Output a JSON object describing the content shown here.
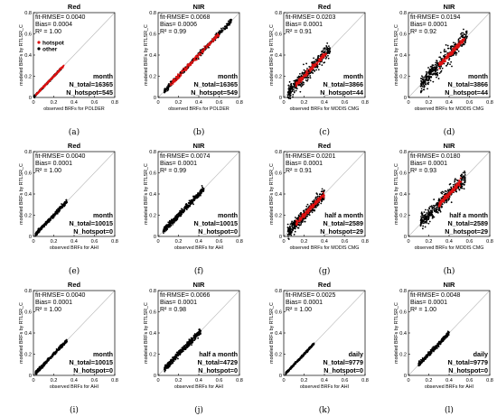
{
  "colors": {
    "hotspot": "#dd1111",
    "other": "#000000",
    "axis": "#000000",
    "diag": "#b8b8b8"
  },
  "legend": {
    "hotspot": "hotspot",
    "other": "other"
  },
  "chart_data": [
    {
      "type": "scatter",
      "caption": "(a)",
      "title": "Red",
      "stats": {
        "rmse": "fit-RMSE=  0.0040",
        "bias": "Bias=  0.0004",
        "r2": "R² =  1.00"
      },
      "period": "month",
      "n_total": "N_total=16365",
      "n_hotspot": "N_hotspot=545",
      "xlabel": "observed BRFs for POLDER",
      "ylabel": "modeled BRFs by RTLSR_C",
      "xlim": [
        0,
        0.8
      ],
      "ylim": [
        0,
        0.8
      ],
      "xticks": [
        0,
        0.2,
        0.4,
        0.6,
        0.8
      ],
      "yticks": [
        0,
        0.2,
        0.4,
        0.6,
        0.8
      ],
      "tick_labels": [
        "0",
        "0.2",
        "0.4",
        "0.6",
        "0.8"
      ],
      "legend": true,
      "other": {
        "range": [
          0.01,
          0.28
        ],
        "spread": 0.004
      },
      "hotspot": {
        "range": [
          0.02,
          0.3
        ],
        "spread": 0.005,
        "width": 0.012
      }
    },
    {
      "type": "scatter",
      "caption": "(b)",
      "title": "NIR",
      "stats": {
        "rmse": "fit-RMSE=  0.0068",
        "bias": "Bias=  0.0006",
        "r2": "R² =  0.99"
      },
      "period": "month",
      "n_total": "N_total=16365",
      "n_hotspot": "N_hotspot=549",
      "xlabel": "observed BRFs for POLDER",
      "ylabel": "modeled BRFs by RTLSR_C",
      "xlim": [
        0,
        0.8
      ],
      "ylim": [
        0,
        0.8
      ],
      "xticks": [
        0,
        0.2,
        0.4,
        0.6,
        0.8
      ],
      "yticks": [
        0,
        0.2,
        0.4,
        0.6,
        0.8
      ],
      "tick_labels": [
        "0",
        "0.2",
        "0.4",
        "0.6",
        "0.8"
      ],
      "legend": false,
      "other": {
        "range": [
          0.06,
          0.72
        ],
        "spread": 0.012
      },
      "hotspot": {
        "range": [
          0.12,
          0.6
        ],
        "spread": 0.013,
        "width": 0.03
      }
    },
    {
      "type": "scatter",
      "caption": "(c)",
      "title": "Red",
      "stats": {
        "rmse": "fit-RMSE=  0.0203",
        "bias": "Bias=  0.0001",
        "r2": "R² =  0.91"
      },
      "period": "month",
      "n_total": "N_total=3866",
      "n_hotspot": "N_hotspot=44",
      "xlabel": "observed BRFs for MODIS CMG",
      "ylabel": "modeled BRFs by RTLSR_C",
      "xlim": [
        0,
        0.8
      ],
      "ylim": [
        0,
        0.8
      ],
      "xticks": [
        0,
        0.2,
        0.4,
        0.6,
        0.8
      ],
      "yticks": [
        0,
        0.2,
        0.4,
        0.6,
        0.8
      ],
      "tick_labels": [
        "0",
        "0.2",
        "0.4",
        "0.6",
        "0.8"
      ],
      "legend": false,
      "other": {
        "range": [
          0.04,
          0.46
        ],
        "spread": 0.035
      },
      "hotspot": {
        "range": [
          0.12,
          0.42
        ],
        "spread": 0.018,
        "width": 0.02
      }
    },
    {
      "type": "scatter",
      "caption": "(d)",
      "title": "NIR",
      "stats": {
        "rmse": "fit-RMSE=  0.0194",
        "bias": "Bias=  0.0001",
        "r2": "R² =  0.92"
      },
      "period": "month",
      "n_total": "N_total=3866",
      "n_hotspot": "N_hotspot=44",
      "xlabel": "observed BRFs for MODIS CMG",
      "ylabel": "modeled BRFs by RTLSR_C",
      "xlim": [
        0,
        0.8
      ],
      "ylim": [
        0,
        0.8
      ],
      "xticks": [
        0,
        0.2,
        0.4,
        0.6,
        0.8
      ],
      "yticks": [
        0,
        0.2,
        0.4,
        0.6,
        0.8
      ],
      "tick_labels": [
        "0",
        "0.2",
        "0.4",
        "0.6",
        "0.8"
      ],
      "legend": false,
      "other": {
        "range": [
          0.12,
          0.58
        ],
        "spread": 0.04
      },
      "hotspot": {
        "range": [
          0.3,
          0.55
        ],
        "spread": 0.02,
        "width": 0.02
      }
    },
    {
      "type": "scatter",
      "caption": "(e)",
      "title": "Red",
      "stats": {
        "rmse": "fit-RMSE=  0.0040",
        "bias": "Bias=  0.0001",
        "r2": "R² =  1.00"
      },
      "period": "month",
      "n_total": "N_total=10015",
      "n_hotspot": "N_hotspot=0",
      "xlabel": "observed BRFs for AHI",
      "ylabel": "modeled BRFs by RTLSR_C",
      "xlim": [
        0,
        0.8
      ],
      "ylim": [
        0,
        0.8
      ],
      "xticks": [
        0,
        0.2,
        0.4,
        0.6,
        0.8
      ],
      "yticks": [
        0,
        0.2,
        0.4,
        0.6,
        0.8
      ],
      "tick_labels": [
        "0",
        "0.2",
        "0.4",
        "0.6",
        "0.8"
      ],
      "legend": false,
      "other": {
        "range": [
          0.02,
          0.33
        ],
        "spread": 0.008
      },
      "hotspot": null
    },
    {
      "type": "scatter",
      "caption": "(f)",
      "title": "NIR",
      "stats": {
        "rmse": "fit-RMSE=  0.0074",
        "bias": "Bias=  0.0001",
        "r2": "R² =  0.99"
      },
      "period": "month",
      "n_total": "N_total=10015",
      "n_hotspot": "N_hotspot=0",
      "xlabel": "observed BRFs for AHI",
      "ylabel": "modeled BRFs by RTLSR_C",
      "xlim": [
        0,
        0.8
      ],
      "ylim": [
        0,
        0.8
      ],
      "xticks": [
        0,
        0.2,
        0.4,
        0.6,
        0.8
      ],
      "yticks": [
        0,
        0.2,
        0.4,
        0.6,
        0.8
      ],
      "tick_labels": [
        "0",
        "0.2",
        "0.4",
        "0.6",
        "0.8"
      ],
      "legend": false,
      "other": {
        "range": [
          0.05,
          0.45
        ],
        "spread": 0.014
      },
      "hotspot": null
    },
    {
      "type": "scatter",
      "caption": "(g)",
      "title": "Red",
      "stats": {
        "rmse": "fit-RMSE=  0.0201",
        "bias": "Bias=  0.0001",
        "r2": "R² =  0.91"
      },
      "period": "half a month",
      "n_total": "N_total=2589",
      "n_hotspot": "N_hotspot=29",
      "xlabel": "observed BRFs for MODIS CMG",
      "ylabel": "modeled BRFs by RTLSR_C",
      "xlim": [
        0,
        0.8
      ],
      "ylim": [
        0,
        0.8
      ],
      "xticks": [
        0,
        0.2,
        0.4,
        0.6,
        0.8
      ],
      "yticks": [
        0,
        0.2,
        0.4,
        0.6,
        0.8
      ],
      "tick_labels": [
        "0",
        "0.2",
        "0.4",
        "0.6",
        "0.8"
      ],
      "legend": false,
      "other": {
        "range": [
          0.04,
          0.4
        ],
        "spread": 0.03
      },
      "hotspot": {
        "range": [
          0.12,
          0.4
        ],
        "spread": 0.018,
        "width": 0.02
      }
    },
    {
      "type": "scatter",
      "caption": "(h)",
      "title": "NIR",
      "stats": {
        "rmse": "fit-RMSE=  0.0180",
        "bias": "Bias=  0.0001",
        "r2": "R² =  0.93"
      },
      "period": "half a month",
      "n_total": "N_total=2589",
      "n_hotspot": "N_hotspot=29",
      "xlabel": "observed BRFs for MODIS CMG",
      "ylabel": "modeled BRFs by RTLSR_C",
      "xlim": [
        0,
        0.8
      ],
      "ylim": [
        0,
        0.8
      ],
      "xticks": [
        0,
        0.2,
        0.4,
        0.6,
        0.8
      ],
      "yticks": [
        0,
        0.2,
        0.4,
        0.6,
        0.8
      ],
      "tick_labels": [
        "0",
        "0.2",
        "0.4",
        "0.6",
        "0.8"
      ],
      "legend": false,
      "other": {
        "range": [
          0.12,
          0.56
        ],
        "spread": 0.035
      },
      "hotspot": {
        "range": [
          0.3,
          0.52
        ],
        "spread": 0.02,
        "width": 0.02
      }
    },
    {
      "type": "scatter",
      "caption": "(i)",
      "title": "Red",
      "stats": {
        "rmse": "fit-RMSE=  0.0040",
        "bias": "Bias=  0.0001",
        "r2": "R² =  1.00"
      },
      "period": "month",
      "n_total": "N_total=10015",
      "n_hotspot": "N_hotspot=0",
      "xlabel": "observed BRFs for AHI",
      "ylabel": "modeled BRFs by RTLSR_C",
      "xlim": [
        0,
        0.8
      ],
      "ylim": [
        0,
        0.8
      ],
      "xticks": [
        0,
        0.2,
        0.4,
        0.6,
        0.8
      ],
      "yticks": [
        0,
        0.2,
        0.4,
        0.6,
        0.8
      ],
      "tick_labels": [
        "0",
        "0.2",
        "0.4",
        "0.6",
        "0.8"
      ],
      "legend": false,
      "other": {
        "range": [
          0.02,
          0.33
        ],
        "spread": 0.008
      },
      "hotspot": null
    },
    {
      "type": "scatter",
      "caption": "(j)",
      "title": "NIR",
      "stats": {
        "rmse": "fit-RMSE=  0.0066",
        "bias": "Bias=  0.0001",
        "r2": "R² =  0.98"
      },
      "period": "half a month",
      "n_total": "N_total=4729",
      "n_hotspot": "N_hotspot=0",
      "xlabel": "observed BRFs for AHI",
      "ylabel": "modeled BRFs by RTLSR_C",
      "xlim": [
        0,
        0.8
      ],
      "ylim": [
        0,
        0.8
      ],
      "xticks": [
        0,
        0.2,
        0.4,
        0.6,
        0.8
      ],
      "yticks": [
        0,
        0.2,
        0.4,
        0.6,
        0.8
      ],
      "tick_labels": [
        "0",
        "0.2",
        "0.4",
        "0.6",
        "0.8"
      ],
      "legend": false,
      "other": {
        "range": [
          0.06,
          0.42
        ],
        "spread": 0.014
      },
      "hotspot": null
    },
    {
      "type": "scatter",
      "caption": "(k)",
      "title": "Red",
      "stats": {
        "rmse": "fit-RMSE=  0.0025",
        "bias": "Bias=  0.0001",
        "r2": "R² =  1.00"
      },
      "period": "daily",
      "n_total": "N_total=9779",
      "n_hotspot": "N_hotspot=0",
      "xlabel": "observed BRFs for AHI",
      "ylabel": "modeled BRFs by RTLSR_C",
      "xlim": [
        0,
        0.8
      ],
      "ylim": [
        0,
        0.8
      ],
      "xticks": [
        0,
        0.2,
        0.4,
        0.6,
        0.8
      ],
      "yticks": [
        0,
        0.2,
        0.4,
        0.6,
        0.8
      ],
      "tick_labels": [
        "0",
        "0.2",
        "0.4",
        "0.6",
        "0.8"
      ],
      "legend": false,
      "other": {
        "range": [
          0.02,
          0.3
        ],
        "spread": 0.005
      },
      "hotspot": null
    },
    {
      "type": "scatter",
      "caption": "(l)",
      "title": "NIR",
      "stats": {
        "rmse": "fit-RMSE=  0.0048",
        "bias": "Bias=  0.0001",
        "r2": "R² =  1.00"
      },
      "period": "daily",
      "n_total": "N_total=9779",
      "n_hotspot": "N_hotspot=0",
      "xlabel": "observed BRFs for AHI",
      "ylabel": "modeled BRFs by RTLSR_C",
      "xlim": [
        0,
        0.8
      ],
      "ylim": [
        0,
        0.8
      ],
      "xticks": [
        0,
        0.2,
        0.4,
        0.6,
        0.8
      ],
      "yticks": [
        0,
        0.2,
        0.4,
        0.6,
        0.8
      ],
      "tick_labels": [
        "0",
        "0.2",
        "0.4",
        "0.6",
        "0.8"
      ],
      "legend": false,
      "other": {
        "range": [
          0.1,
          0.4
        ],
        "spread": 0.01
      },
      "hotspot": null
    }
  ]
}
